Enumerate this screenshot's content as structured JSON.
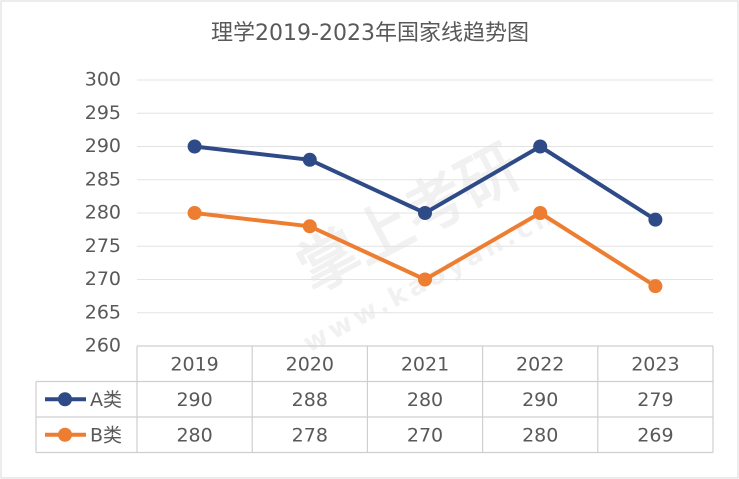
{
  "chart_data": {
    "type": "line",
    "title": "理学2019-2023年国家线趋势图",
    "categories": [
      "2019",
      "2020",
      "2021",
      "2022",
      "2023"
    ],
    "series": [
      {
        "name": "A类",
        "color": "#2e4a87",
        "values": [
          290,
          288,
          280,
          290,
          279
        ]
      },
      {
        "name": "B类",
        "color": "#ed7d31",
        "values": [
          280,
          278,
          270,
          280,
          269
        ]
      }
    ],
    "ylim": [
      260,
      300
    ],
    "yticks": [
      260,
      265,
      270,
      275,
      280,
      285,
      290,
      295,
      300
    ],
    "grid": true,
    "watermark": [
      "掌上考研",
      "www.kaoyan.cn"
    ]
  }
}
